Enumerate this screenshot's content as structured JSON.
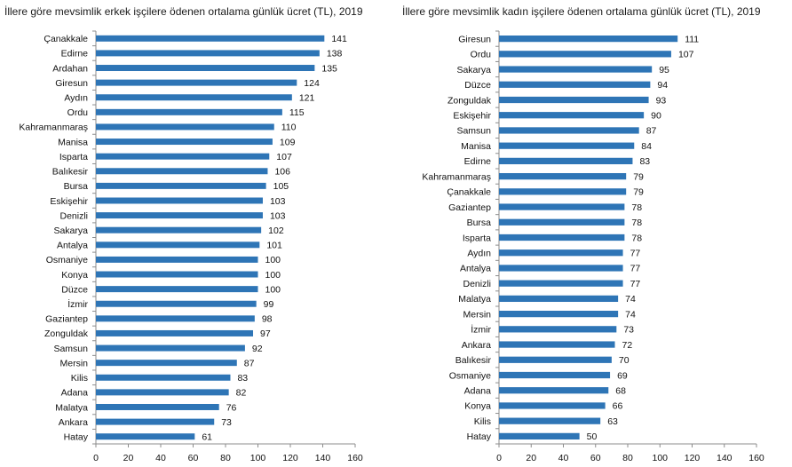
{
  "chart_data": [
    {
      "type": "bar",
      "orientation": "horizontal",
      "title": "İllere göre mevsimlik erkek işçilere ödenen ortalama günlük ücret (TL), 2019",
      "categories": [
        "Çanakkale",
        "Edirne",
        "Ardahan",
        "Giresun",
        "Aydın",
        "Ordu",
        "Kahramanmaraş",
        "Manisa",
        "Isparta",
        "Balıkesir",
        "Bursa",
        "Eskişehir",
        "Denizli",
        "Sakarya",
        "Antalya",
        "Osmaniye",
        "Konya",
        "Düzce",
        "İzmir",
        "Gaziantep",
        "Zonguldak",
        "Samsun",
        "Mersin",
        "Kilis",
        "Adana",
        "Malatya",
        "Ankara",
        "Hatay"
      ],
      "values": [
        141,
        138,
        135,
        124,
        121,
        115,
        110,
        109,
        107,
        106,
        105,
        103,
        103,
        102,
        101,
        100,
        100,
        100,
        99,
        98,
        97,
        92,
        87,
        83,
        82,
        76,
        73,
        61
      ],
      "xlim": [
        0,
        160
      ],
      "xticks": [
        "0",
        "20",
        "40",
        "60",
        "80",
        "100",
        "120",
        "140",
        "160"
      ],
      "grid": false,
      "bar_color": "#2e75b6"
    },
    {
      "type": "bar",
      "orientation": "horizontal",
      "title": "İllere göre mevsimlik kadın işçilere ödenen ortalama günlük ücret (TL), 2019",
      "categories": [
        "Giresun",
        "Ordu",
        "Sakarya",
        "Düzce",
        "Zonguldak",
        "Eskişehir",
        "Samsun",
        "Manisa",
        "Edirne",
        "Kahramanmaraş",
        "Çanakkale",
        "Gaziantep",
        "Bursa",
        "Isparta",
        "Aydın",
        "Antalya",
        "Denizli",
        "Malatya",
        "Mersin",
        "İzmir",
        "Ankara",
        "Balıkesir",
        "Osmaniye",
        "Adana",
        "Konya",
        "Kilis",
        "Hatay"
      ],
      "values": [
        111,
        107,
        95,
        94,
        93,
        90,
        87,
        84,
        83,
        79,
        79,
        78,
        78,
        78,
        77,
        77,
        77,
        74,
        74,
        73,
        72,
        70,
        69,
        68,
        66,
        63,
        50
      ],
      "xlim": [
        0,
        160
      ],
      "xticks": [
        "0",
        "20",
        "40",
        "60",
        "80",
        "100",
        "120",
        "140",
        "160"
      ],
      "grid": false,
      "bar_color": "#2e75b6"
    }
  ]
}
